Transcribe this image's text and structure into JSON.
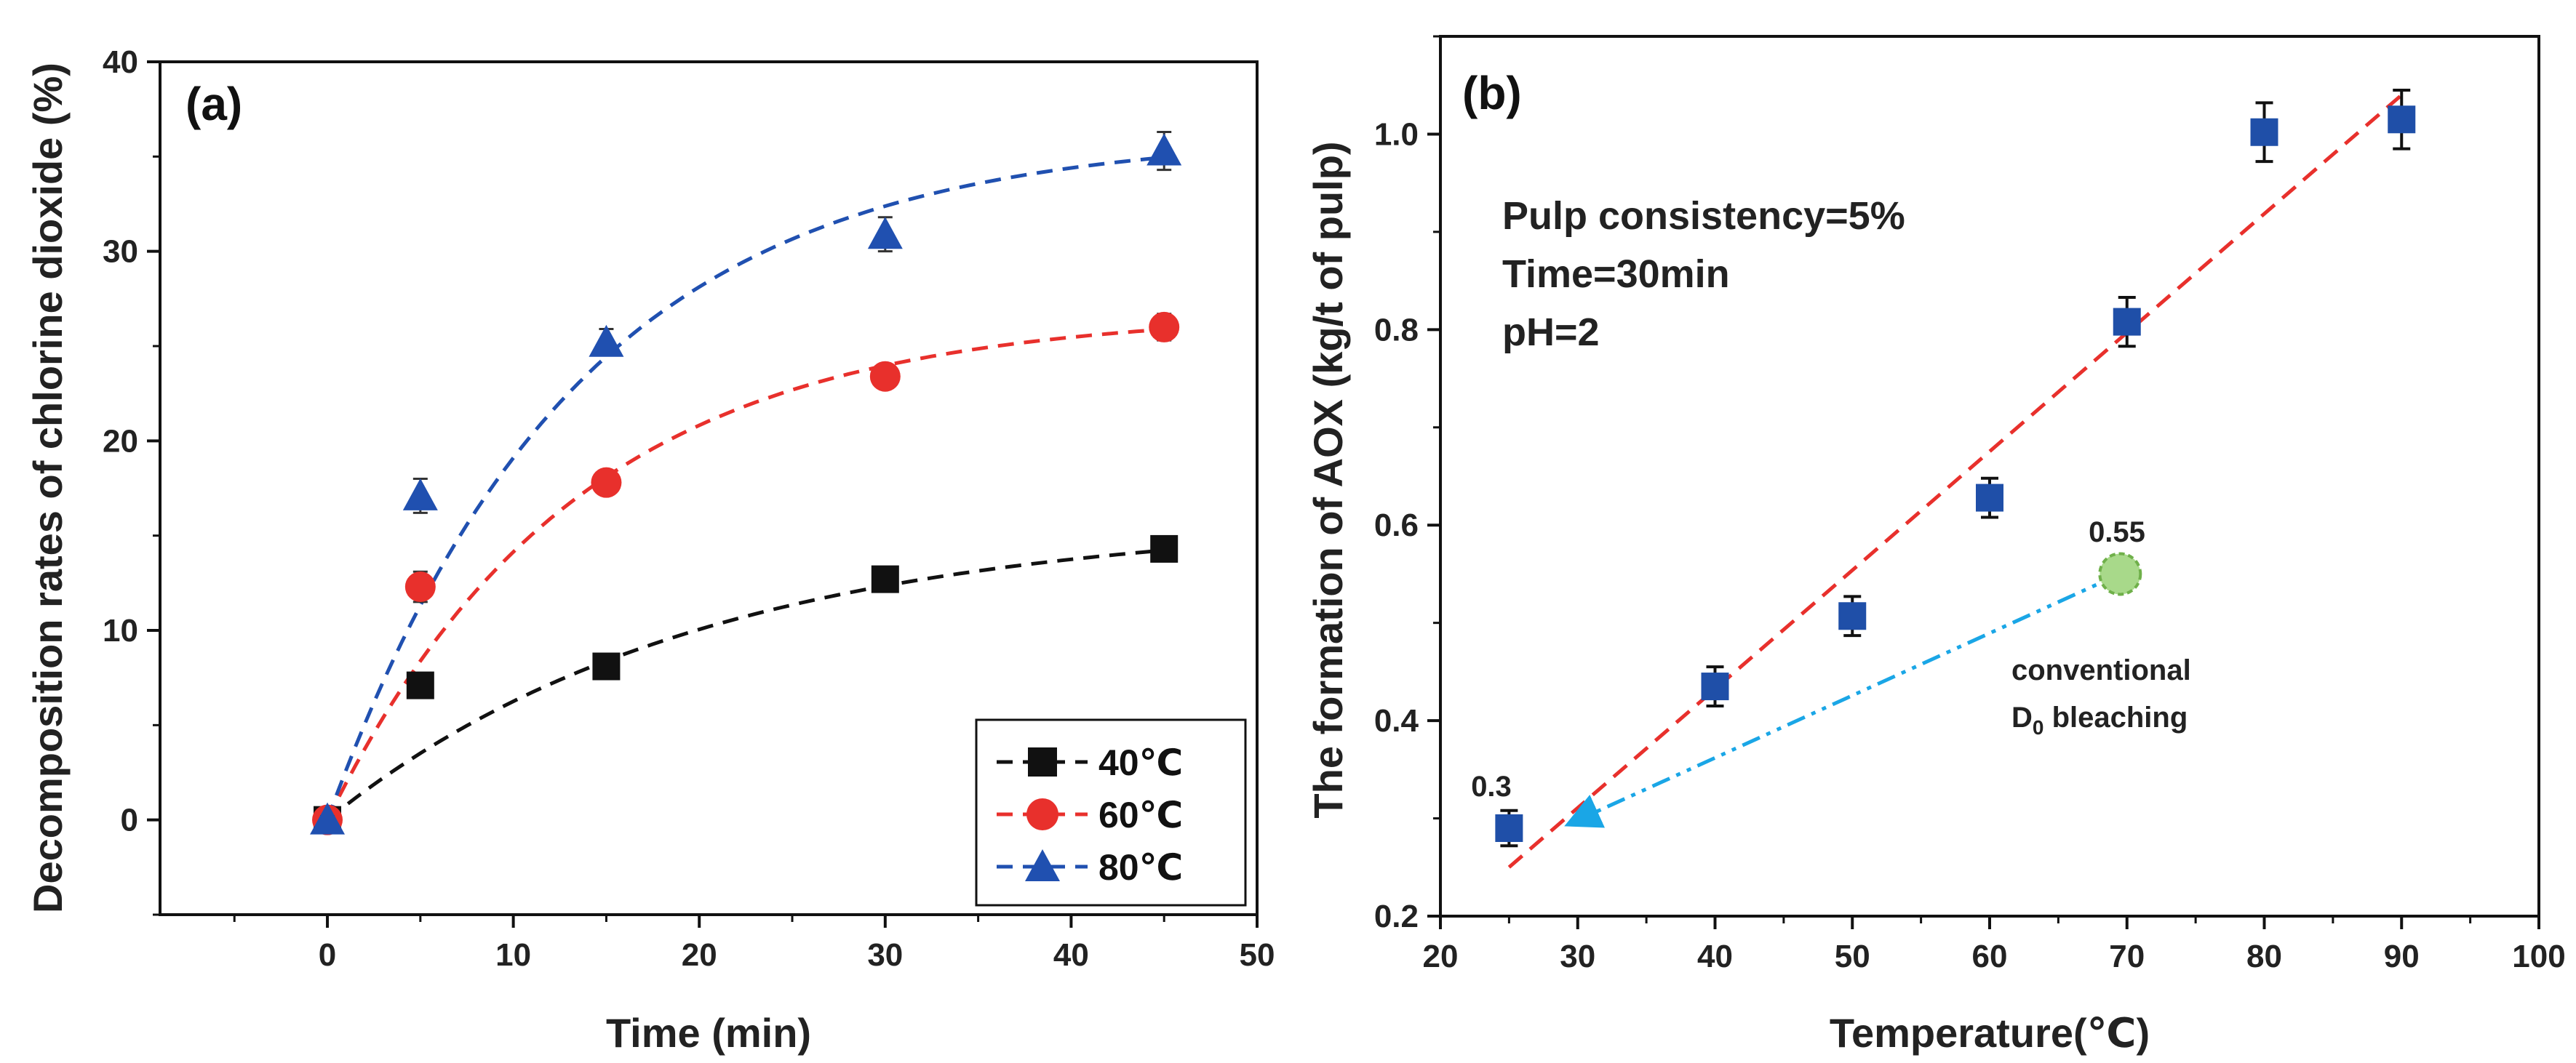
{
  "chart_data": [
    {
      "type": "scatter",
      "panel_label": "(a)",
      "xlabel": "Time (min)",
      "ylabel": "Decomposition rates of chlorine dioxide (%)",
      "xlim": [
        -9,
        50
      ],
      "ylim": [
        -5,
        40
      ],
      "xticks": [
        0,
        10,
        20,
        30,
        40,
        50
      ],
      "xtick_labels": [
        "0",
        "10",
        "20",
        "30",
        "40",
        "50"
      ],
      "yticks": [
        0,
        10,
        20,
        30,
        40
      ],
      "ytick_labels": [
        "0",
        "10",
        "20",
        "30",
        "40"
      ],
      "legend_position": "bottom-right",
      "series": [
        {
          "name": "40℃",
          "color": "#111111",
          "marker": "square",
          "x": [
            0,
            5,
            15,
            30,
            45
          ],
          "y": [
            0,
            7.1,
            8.1,
            12.7,
            14.3
          ],
          "err": [
            0.2,
            0.3,
            0.3,
            0.4,
            0.6
          ],
          "fit": {
            "a": 15.9,
            "k": 0.05
          }
        },
        {
          "name": "60℃",
          "color": "#e8302c",
          "marker": "circle",
          "x": [
            0,
            5,
            15,
            30,
            45
          ],
          "y": [
            0,
            12.3,
            17.8,
            23.4,
            26.0
          ],
          "err": [
            0.2,
            0.8,
            0.4,
            0.6,
            0.7
          ],
          "fit": {
            "a": 26.8,
            "k": 0.075
          }
        },
        {
          "name": "80℃",
          "color": "#2050b0",
          "marker": "triangle",
          "x": [
            0,
            5,
            15,
            30,
            45
          ],
          "y": [
            0,
            17.1,
            25.2,
            30.9,
            35.3
          ],
          "err": [
            0.2,
            0.9,
            0.7,
            0.9,
            1.0
          ],
          "fit": {
            "a": 36.2,
            "k": 0.075
          }
        }
      ]
    },
    {
      "type": "scatter",
      "panel_label": "(b)",
      "xlabel": "Temperature(℃)",
      "ylabel": "The formation of AOX (kg/t of pulp)",
      "xlim": [
        20,
        100
      ],
      "ylim": [
        0.2,
        1.1
      ],
      "xticks": [
        20,
        30,
        40,
        50,
        60,
        70,
        80,
        90,
        100
      ],
      "xtick_labels": [
        "20",
        "30",
        "40",
        "50",
        "60",
        "70",
        "80",
        "90",
        "100"
      ],
      "yticks": [
        0.2,
        0.4,
        0.6,
        0.8,
        1.0
      ],
      "ytick_labels": [
        "0.2",
        "0.4",
        "0.6",
        "0.8",
        "1.0"
      ],
      "conditions": [
        "Pulp consistency=5%",
        "Time=30min",
        "pH=2"
      ],
      "series": [
        {
          "name": "AOX",
          "color": "#1f4fa8",
          "marker": "square",
          "x": [
            25,
            40,
            50,
            60,
            70,
            80,
            90
          ],
          "y": [
            0.29,
            0.435,
            0.507,
            0.628,
            0.808,
            1.002,
            1.015
          ],
          "err": [
            0.018,
            0.02,
            0.02,
            0.02,
            0.025,
            0.03,
            0.03
          ]
        }
      ],
      "fit_line": {
        "color": "#e8302c",
        "x": [
          25,
          90
        ],
        "y": [
          0.25,
          1.04
        ]
      },
      "conventional_point": {
        "x": 69.5,
        "y": 0.55,
        "label": "0.55",
        "color": "#a8d98a"
      },
      "arrow": {
        "color": "#1aa6e6",
        "from": [
          69.5,
          0.55
        ],
        "to": [
          29.5,
          0.295
        ]
      },
      "label_low": "0.3",
      "conventional_text_line1": "conventional",
      "conventional_text_line2_main": "D",
      "conventional_text_line2_sub": "0",
      "conventional_text_line2_rest": " bleaching"
    }
  ]
}
